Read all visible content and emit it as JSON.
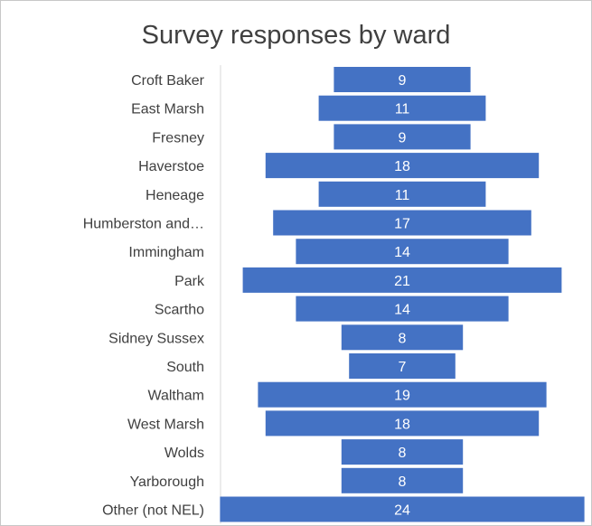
{
  "chart_data": {
    "type": "bar",
    "orientation": "horizontal",
    "layout": "centered",
    "title": "Survey responses by ward",
    "categories": [
      "Croft Baker",
      "East Marsh",
      "Fresney",
      "Haverstoe",
      "Heneage",
      "Humberston and…",
      "Immingham",
      "Park",
      "Scartho",
      "Sidney Sussex",
      "South",
      "Waltham",
      "West Marsh",
      "Wolds",
      "Yarborough",
      "Other (not NEL)"
    ],
    "values": [
      9,
      11,
      9,
      18,
      11,
      17,
      14,
      21,
      14,
      8,
      7,
      19,
      18,
      8,
      8,
      24
    ],
    "data_labels": true,
    "bar_color": "#4472c4",
    "legend": "none",
    "grid": false
  }
}
